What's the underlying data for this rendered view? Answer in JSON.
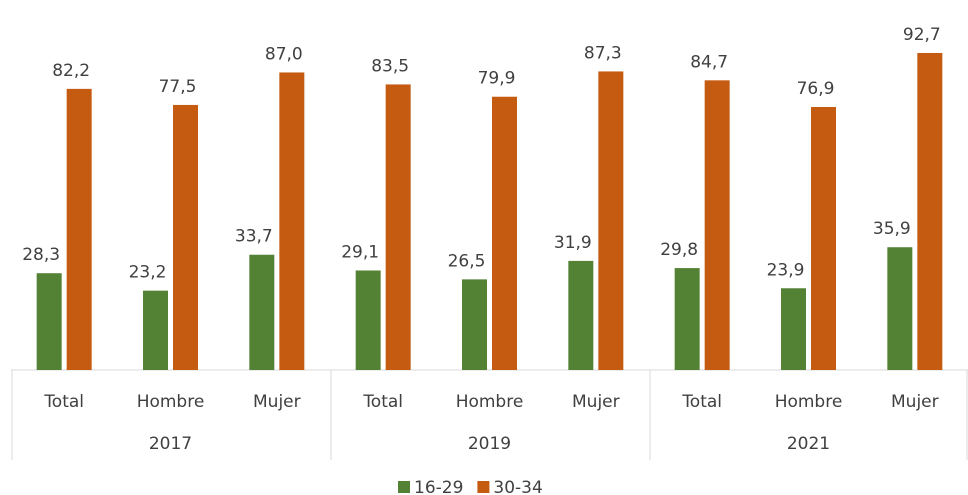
{
  "chart_data": {
    "type": "bar",
    "categories": [
      "Total",
      "Hombre",
      "Mujer",
      "Total",
      "Hombre",
      "Mujer",
      "Total",
      "Hombre",
      "Mujer"
    ],
    "groups": [
      "2017",
      "2019",
      "2021"
    ],
    "series": [
      {
        "name": "16-29",
        "color": "#548235",
        "values": [
          28.3,
          23.2,
          33.7,
          29.1,
          26.5,
          31.9,
          29.8,
          23.9,
          35.9
        ],
        "value_labels": [
          "28,3",
          "23,2",
          "33,7",
          "29,1",
          "26,5",
          "31,9",
          "29,8",
          "23,9",
          "35,9"
        ]
      },
      {
        "name": "30-34",
        "color": "#c55a11",
        "values": [
          82.2,
          77.5,
          87.0,
          83.5,
          79.9,
          87.3,
          84.7,
          76.9,
          92.7
        ],
        "value_labels": [
          "82,2",
          "77,5",
          "87,0",
          "83,5",
          "79,9",
          "87,3",
          "84,7",
          "76,9",
          "92,7"
        ]
      }
    ],
    "ylim": [
      0,
      100
    ],
    "legend": "bottom"
  }
}
